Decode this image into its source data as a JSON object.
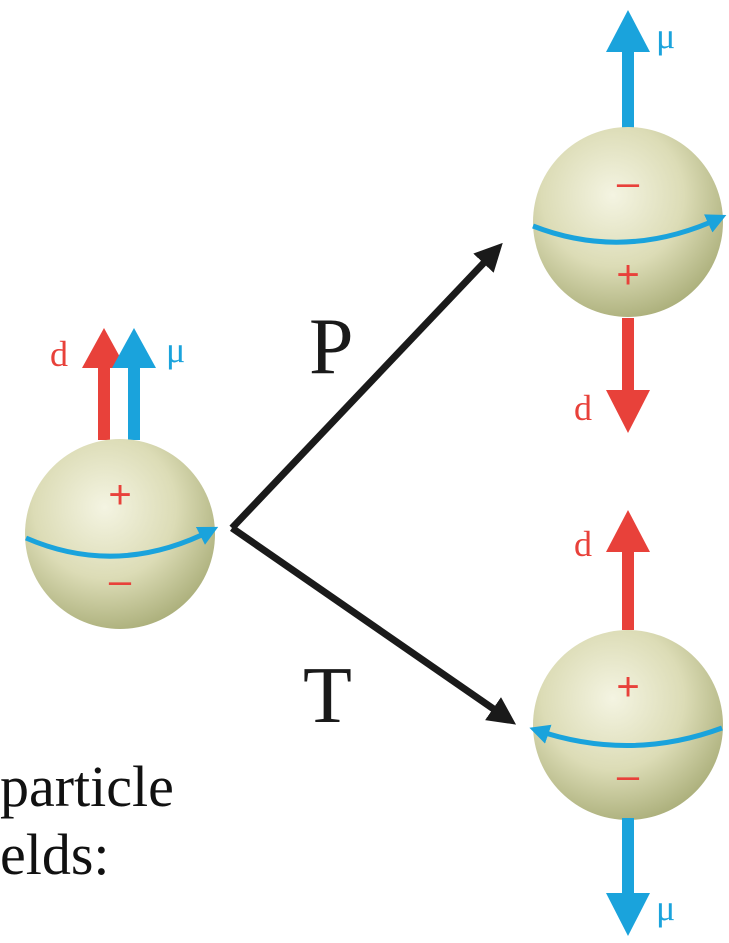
{
  "operators": {
    "parity": "P",
    "time_reversal": "T"
  },
  "vector_labels": {
    "edm": "d",
    "magnetic_moment": "μ"
  },
  "charge_signs": {
    "plus": "+",
    "minus": "–"
  },
  "caption_fragments": [
    "particle",
    "elds:"
  ],
  "colors": {
    "edm": "#e8413a",
    "magnetic_moment": "#1aa3dc",
    "operator_arrow": "#1a1a1a",
    "sphere_light": "#f4f4e2",
    "sphere_dark": "#a9ad78"
  }
}
